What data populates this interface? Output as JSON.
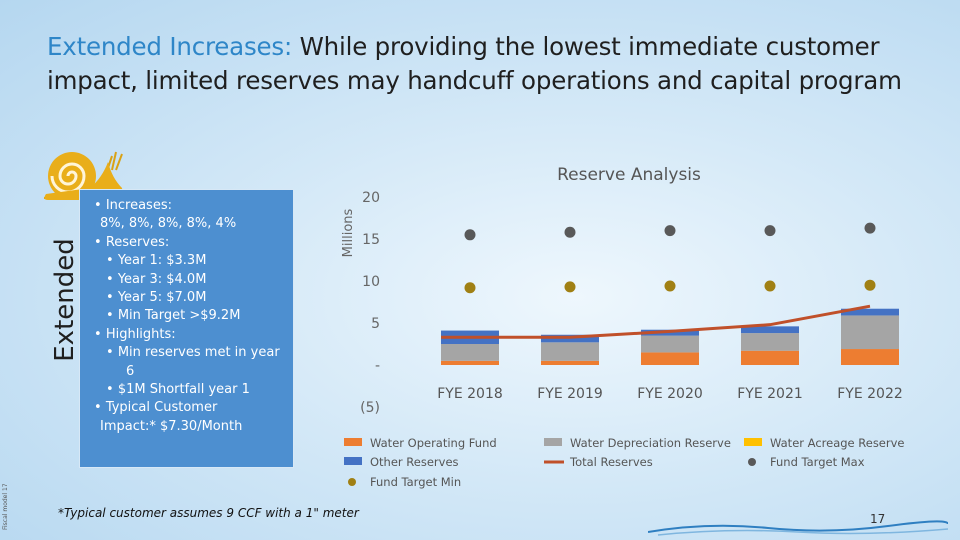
{
  "title": {
    "accent": "Extended Increases:",
    "rest": " While providing the lowest immediate customer impact, limited reserves may handcuff operations and capital program"
  },
  "side_label": "Extended",
  "file_label": "Fiscal model 17",
  "panel": {
    "increases_label": "Increases:",
    "increases_values": "8%, 8%, 8%, 8%, 4%",
    "reserves_label": "Reserves:",
    "reserves_items": [
      "Year 1: $3.3M",
      "Year 3: $4.0M",
      "Year 5: $7.0M",
      "Min Target >$9.2M"
    ],
    "highlights_label": "Highlights:",
    "highlight_1a": "Min reserves met in year",
    "highlight_1b": "6",
    "highlight_2": "$1M Shortfall year 1",
    "impact_label": "Typical Customer",
    "impact_value": "Impact:* $7.30/Month"
  },
  "footnote": "*Typical customer assumes 9 CCF with a 1\" meter",
  "page_number": "17",
  "colors": {
    "accent": "#2e86c8",
    "panel": "#4d8fd0",
    "water_operating": "#ed7d31",
    "water_depreciation": "#a5a5a5",
    "water_acreage": "#ffc000",
    "other_reserves": "#4472c4",
    "total_reserves": "#c0502a",
    "target_max": "#595959",
    "target_min": "#a08014"
  },
  "chart_data": {
    "type": "bar",
    "title": "Reserve Analysis",
    "ylabel": "Millions",
    "ylim": [
      -5,
      20
    ],
    "yticks": [
      "(5)",
      "-",
      "5",
      "10",
      "15",
      "20"
    ],
    "ytick_values": [
      -5,
      0,
      5,
      10,
      15,
      20
    ],
    "categories": [
      "FYE 2018",
      "FYE 2019",
      "FYE 2020",
      "FYE 2021",
      "FYE 2022"
    ],
    "series": [
      {
        "name": "Water Operating Fund",
        "kind": "bar",
        "values": [
          0.5,
          0.5,
          1.5,
          1.7,
          1.9
        ]
      },
      {
        "name": "Water Depreciation Reserve",
        "kind": "bar",
        "values": [
          2.0,
          2.2,
          2.0,
          2.1,
          4.0
        ]
      },
      {
        "name": "Water Acreage Reserve",
        "kind": "bar",
        "values": [
          0.0,
          0.0,
          0.0,
          0.0,
          0.0
        ]
      },
      {
        "name": "Other Reserves",
        "kind": "bar",
        "values": [
          1.6,
          0.9,
          0.7,
          0.8,
          0.8
        ]
      },
      {
        "name": "Total Reserves",
        "kind": "line",
        "values": [
          3.3,
          3.3,
          4.0,
          4.8,
          7.0
        ]
      },
      {
        "name": "Fund Target Max",
        "kind": "scatter",
        "values": [
          15.5,
          15.8,
          16.0,
          16.0,
          16.3
        ]
      },
      {
        "name": "Fund Target Min",
        "kind": "scatter",
        "values": [
          9.2,
          9.3,
          9.4,
          9.4,
          9.5
        ]
      }
    ],
    "legend": [
      "Water Operating Fund",
      "Water Depreciation Reserve",
      "Water Acreage Reserve",
      "Other Reserves",
      "Total Reserves",
      "Fund Target Max",
      "Fund Target Min"
    ],
    "legend_position": "bottom"
  }
}
